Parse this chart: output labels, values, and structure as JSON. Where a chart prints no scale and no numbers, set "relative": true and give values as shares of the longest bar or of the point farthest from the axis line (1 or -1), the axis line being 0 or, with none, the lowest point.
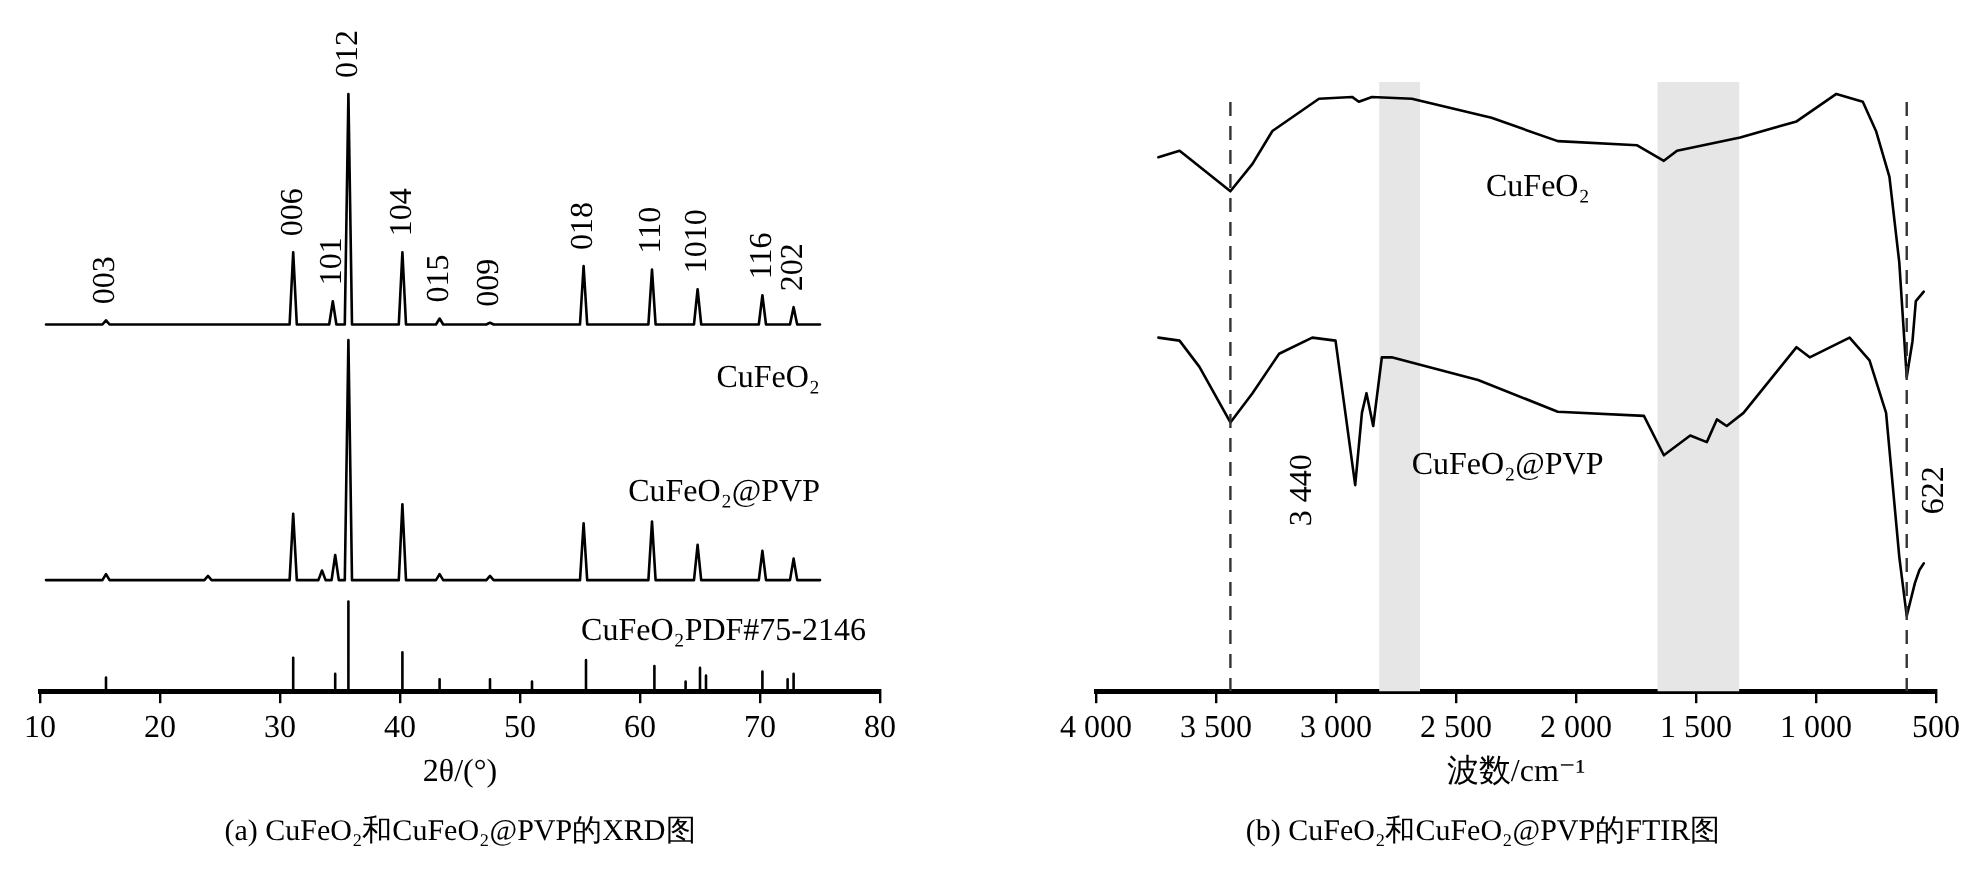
{
  "chart_data": [
    {
      "type": "line",
      "title": "(a) CuFeO₂和CuFeO₂@PVP的XRD图",
      "xlabel": "2θ/(°)",
      "relative": true,
      "xlim": [
        10,
        80
      ],
      "xticks": [
        10,
        20,
        30,
        40,
        50,
        60,
        70,
        80
      ],
      "grid": false,
      "legend": false,
      "marker": "none",
      "line_style": "solid",
      "series": [
        {
          "name": "CuFeO₂",
          "color": "#000000",
          "x": [
            10.5,
            15.2,
            15.5,
            15.8,
            30.8,
            31.1,
            31.4,
            34.1,
            34.4,
            34.7,
            35.4,
            35.7,
            36.0,
            39.9,
            40.2,
            40.5,
            43.0,
            43.3,
            43.6,
            47.2,
            47.5,
            47.8,
            55.0,
            55.3,
            55.6,
            60.7,
            61.0,
            61.3,
            64.5,
            64.8,
            65.1,
            69.9,
            70.2,
            70.5,
            72.5,
            72.8,
            73.1,
            75
          ],
          "values": [
            0.614,
            0.614,
            0.621,
            0.614,
            0.614,
            0.735,
            0.614,
            0.614,
            0.653,
            0.614,
            0.614,
            1.0,
            0.614,
            0.614,
            0.735,
            0.614,
            0.614,
            0.624,
            0.614,
            0.614,
            0.617,
            0.614,
            0.614,
            0.712,
            0.614,
            0.614,
            0.706,
            0.614,
            0.614,
            0.673,
            0.614,
            0.614,
            0.663,
            0.614,
            0.614,
            0.643,
            0.614,
            0.614
          ]
        },
        {
          "name": "CuFeO₂@PVP",
          "color": "#000000",
          "x": [
            10.5,
            15.2,
            15.5,
            15.8,
            23.7,
            24.0,
            24.3,
            30.8,
            31.1,
            31.4,
            33.2,
            33.5,
            33.8,
            34.3,
            34.6,
            34.9,
            35.4,
            35.7,
            36.0,
            39.9,
            40.2,
            40.5,
            43.0,
            43.3,
            43.6,
            47.2,
            47.5,
            47.8,
            55.0,
            55.3,
            55.6,
            60.7,
            61.0,
            61.3,
            64.5,
            64.8,
            65.1,
            69.9,
            70.2,
            70.5,
            72.5,
            72.8,
            73.1,
            75
          ],
          "values": [
            0.186,
            0.186,
            0.196,
            0.186,
            0.186,
            0.193,
            0.186,
            0.186,
            0.297,
            0.186,
            0.186,
            0.202,
            0.186,
            0.186,
            0.228,
            0.186,
            0.186,
            0.588,
            0.186,
            0.186,
            0.313,
            0.186,
            0.186,
            0.196,
            0.186,
            0.186,
            0.193,
            0.186,
            0.186,
            0.281,
            0.186,
            0.186,
            0.284,
            0.186,
            0.186,
            0.245,
            0.186,
            0.186,
            0.235,
            0.186,
            0.186,
            0.222,
            0.186,
            0.186
          ]
        },
        {
          "name": "CuFeO₂PDF#75-2146",
          "color": "#000000",
          "x": [
            10,
            15.5,
            15.5,
            15.5,
            31.1,
            31.1,
            31.1,
            34.6,
            34.6,
            34.6,
            35.7,
            35.7,
            35.7,
            40.2,
            40.2,
            40.2,
            43.3,
            43.3,
            43.3,
            47.5,
            47.5,
            47.5,
            51.0,
            51.0,
            51.0,
            55.5,
            55.5,
            55.5,
            61.2,
            61.2,
            61.2,
            63.8,
            63.8,
            63.8,
            65.0,
            65.0,
            65.0,
            65.5,
            65.5,
            65.5,
            70.2,
            70.2,
            70.2,
            72.3,
            72.3,
            72.3,
            72.8,
            72.8,
            72.8,
            80
          ],
          "values": [
            0,
            0,
            0.023,
            0,
            0,
            0.056,
            0,
            0,
            0.029,
            0,
            0,
            0.15,
            0,
            0,
            0.065,
            0,
            0,
            0.02,
            0,
            0,
            0.02,
            0,
            0,
            0.016,
            0,
            0,
            0.052,
            0,
            0,
            0.042,
            0,
            0,
            0.016,
            0,
            0,
            0.039,
            0,
            0,
            0.026,
            0,
            0,
            0.033,
            0,
            0,
            0.02,
            0,
            0,
            0.029,
            0,
            0
          ]
        }
      ],
      "annotations": [
        {
          "text": "003",
          "x": 15.5,
          "y": 0.621
        },
        {
          "text": "006",
          "x": 31.1,
          "y": 0.735
        },
        {
          "text": "101",
          "x": 34.4,
          "y": 0.653
        },
        {
          "text": "012",
          "x": 35.7,
          "y": 1.0
        },
        {
          "text": "104",
          "x": 40.2,
          "y": 0.735
        },
        {
          "text": "015",
          "x": 43.3,
          "y": 0.624
        },
        {
          "text": "009",
          "x": 47.5,
          "y": 0.617
        },
        {
          "text": "018",
          "x": 55.3,
          "y": 0.712
        },
        {
          "text": "110",
          "x": 61.0,
          "y": 0.706
        },
        {
          "text": "1010",
          "x": 64.8,
          "y": 0.673
        },
        {
          "text": "116",
          "x": 70.2,
          "y": 0.663
        },
        {
          "text": "202",
          "x": 72.8,
          "y": 0.643
        }
      ]
    },
    {
      "type": "line",
      "title": "(b) CuFeO₂和CuFeO₂@PVP的FTIR图",
      "xlabel": "波数/cm⁻¹",
      "relative": true,
      "xlim": [
        4000,
        500
      ],
      "xticks": [
        {
          "value": 4000,
          "label": "4 000"
        },
        {
          "value": 3500,
          "label": "3 500"
        },
        {
          "value": 3000,
          "label": "3 000"
        },
        {
          "value": 2500,
          "label": "2 500"
        },
        {
          "value": 2000,
          "label": "2 000"
        },
        {
          "value": 1500,
          "label": "1 500"
        },
        {
          "value": 1000,
          "label": "1 000"
        },
        500
      ],
      "grid": false,
      "legend": false,
      "marker": "none",
      "line_style": "solid",
      "series": [
        {
          "name": "CuFeO₂",
          "color": "#000000",
          "x": [
            3740,
            3652,
            3624,
            3440,
            3348,
            3265,
            3071,
            2933,
            2905,
            2850,
            2684,
            2352,
            2076,
            1745,
            1634,
            1579,
            1316,
            1081,
            915,
            805,
            750,
            694,
            653,
            622,
            598,
            584,
            551
          ],
          "values": [
            0.894,
            0.905,
            0.896,
            0.837,
            0.883,
            0.938,
            0.992,
            0.995,
            0.987,
            0.995,
            0.992,
            0.96,
            0.921,
            0.914,
            0.888,
            0.905,
            0.927,
            0.954,
            1.0,
            0.987,
            0.938,
            0.861,
            0.718,
            0.526,
            0.586,
            0.653,
            0.669
          ]
        },
        {
          "name": "CuFeO₂@PVP",
          "color": "#000000",
          "x": [
            3740,
            3652,
            3569,
            3440,
            3348,
            3237,
            3099,
            3002,
            2961,
            2920,
            2892,
            2873,
            2845,
            2809,
            2768,
            2408,
            2076,
            1717,
            1634,
            1524,
            1455,
            1413,
            1372,
            1302,
            1081,
            1026,
            860,
            777,
            708,
            653,
            622,
            588,
            569,
            551
          ],
          "values": [
            0.592,
            0.587,
            0.543,
            0.45,
            0.499,
            0.565,
            0.592,
            0.587,
            0.466,
            0.345,
            0.466,
            0.499,
            0.444,
            0.559,
            0.559,
            0.521,
            0.468,
            0.461,
            0.395,
            0.428,
            0.417,
            0.455,
            0.444,
            0.466,
            0.576,
            0.559,
            0.592,
            0.554,
            0.466,
            0.225,
            0.126,
            0.181,
            0.203,
            0.214
          ]
        }
      ],
      "ref_lines": [
        {
          "axis": "x",
          "value": 3440,
          "label": "3 440",
          "line_style": "dashed",
          "color": "#333333"
        },
        {
          "axis": "x",
          "value": 622,
          "label": "622",
          "line_style": "dashed",
          "color": "#333333"
        }
      ],
      "bands": [
        {
          "axis": "x",
          "from": 2820,
          "to": 2650,
          "color": "#e6e6e6"
        },
        {
          "axis": "x",
          "from": 1660,
          "to": 1320,
          "color": "#e6e6e6"
        }
      ]
    }
  ]
}
